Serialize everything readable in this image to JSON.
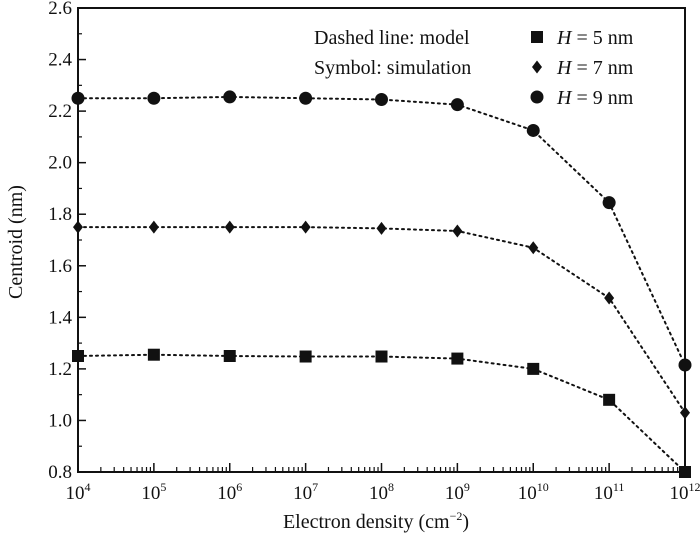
{
  "chart_data": {
    "type": "line",
    "xlabel": "Electron density (cm⁻²)",
    "ylabel": "Centroid (nm)",
    "x_scale": "log",
    "xlim": [
      10000,
      1000000000000
    ],
    "ylim": [
      0.8,
      2.6
    ],
    "x": [
      10000,
      100000,
      1000000,
      10000000,
      100000000,
      1000000000,
      10000000000,
      100000000000,
      1000000000000
    ],
    "x_tick_labels": [
      {
        "base": "10",
        "exp": "4"
      },
      {
        "base": "10",
        "exp": "5"
      },
      {
        "base": "10",
        "exp": "6"
      },
      {
        "base": "10",
        "exp": "7"
      },
      {
        "base": "10",
        "exp": "8"
      },
      {
        "base": "10",
        "exp": "9"
      },
      {
        "base": "10",
        "exp": "10"
      },
      {
        "base": "10",
        "exp": "11"
      },
      {
        "base": "10",
        "exp": "12"
      }
    ],
    "y_ticks": [
      0.8,
      1.0,
      1.2,
      1.4,
      1.6,
      1.8,
      2.0,
      2.2,
      2.4,
      2.6
    ],
    "y_tick_labels": [
      "0.8",
      "1.0",
      "1.2",
      "1.4",
      "1.6",
      "1.8",
      "2.0",
      "2.2",
      "2.4",
      "2.6"
    ],
    "annotations": [
      "Dashed line: model",
      "Symbol: simulation"
    ],
    "legend_position": "top-right",
    "series": [
      {
        "name_var": "H",
        "name_rest": " = 5 nm",
        "marker": "square",
        "values": [
          1.25,
          1.255,
          1.25,
          1.248,
          1.248,
          1.24,
          1.2,
          1.08,
          0.8
        ]
      },
      {
        "name_var": "H",
        "name_rest": " = 7 nm",
        "marker": "diamond",
        "values": [
          1.75,
          1.75,
          1.75,
          1.75,
          1.745,
          1.735,
          1.67,
          1.475,
          1.03
        ]
      },
      {
        "name_var": "H",
        "name_rest": " = 9 nm",
        "marker": "circle",
        "values": [
          2.25,
          2.25,
          2.255,
          2.25,
          2.245,
          2.225,
          2.125,
          1.845,
          1.215
        ]
      }
    ],
    "model_line_style": "dotted",
    "grid": false,
    "color": "#111111"
  }
}
